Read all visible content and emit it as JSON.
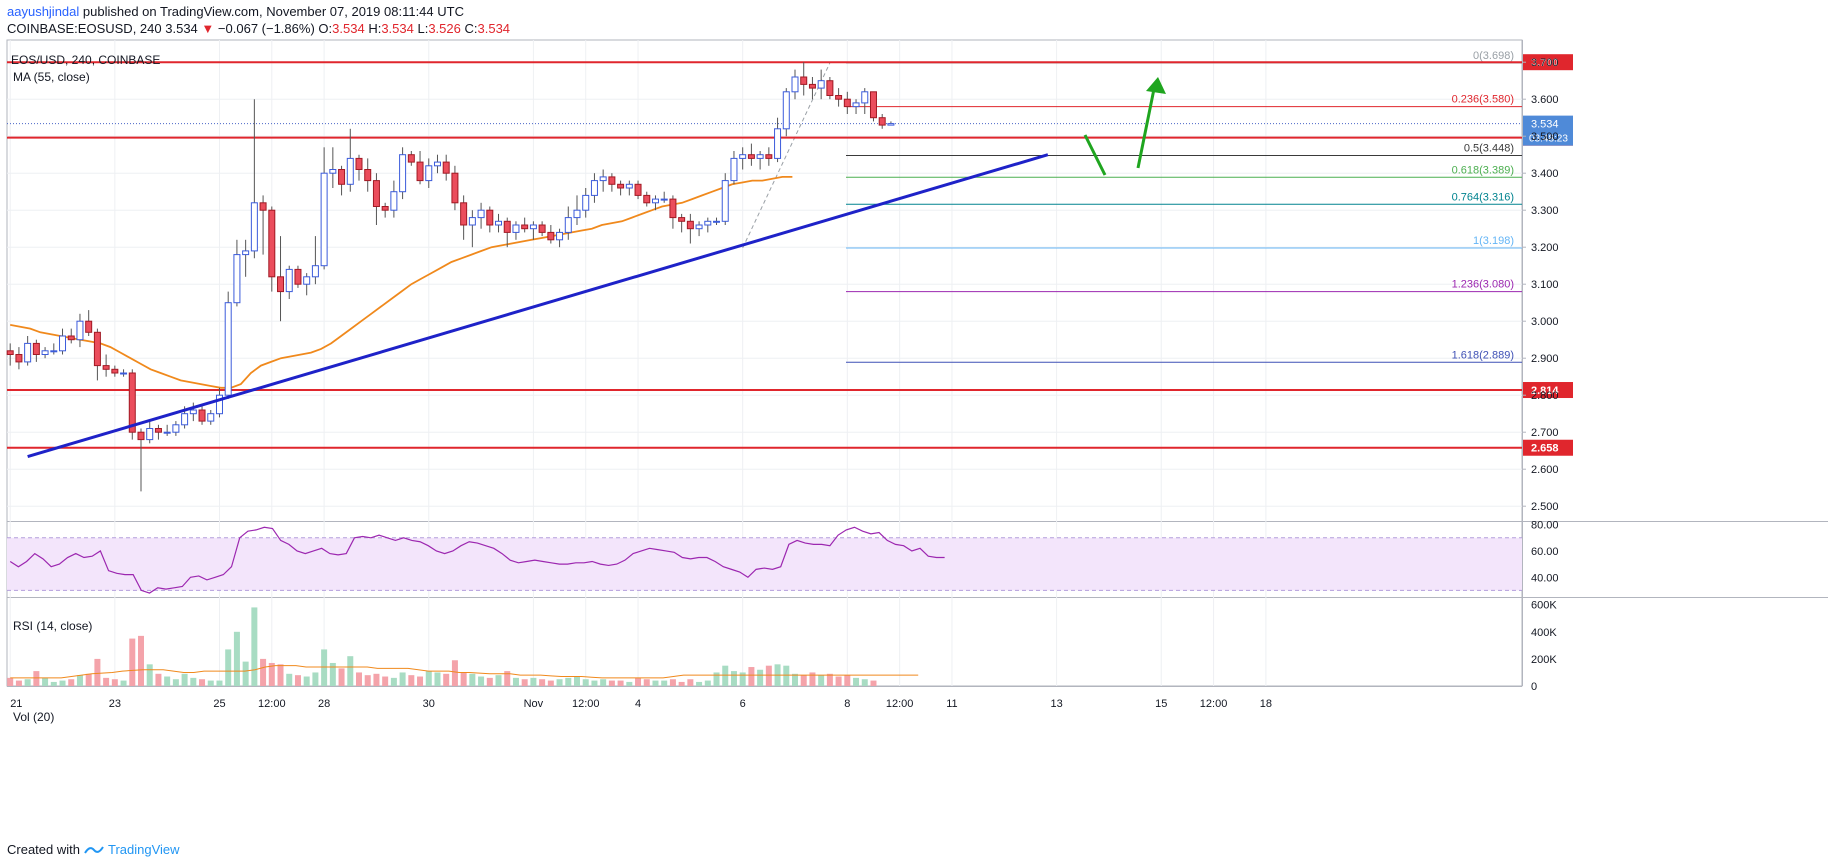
{
  "header": {
    "user": "aayushjindal",
    "published_text": " published on TradingView.com, November 07, 2019 08:11:44 UTC",
    "symbol": "COINBASE:EOSUSD, 240",
    "last": "3.534",
    "change_arrow": "▼",
    "change": "−0.067 (−1.86%)",
    "o_label": "O:",
    "o": "3.534",
    "h_label": "H:",
    "h": "3.534",
    "l_label": "L:",
    "l": "3.526",
    "c_label": "C:",
    "c": "3.534"
  },
  "footer": {
    "created_with": "Created with",
    "brand": "TradingView",
    "logo_icon": "tradingview-logo-icon"
  },
  "colors": {
    "up": "#53b987",
    "down": "#eb4d5c",
    "ma": "#f0891c",
    "trend": "#1e22c8",
    "hline": "#e0262d",
    "arrow": "#1fa51f",
    "rsi": "#9c27b0",
    "rsi_band": "#f3e5fb"
  },
  "chart_data": [
    {
      "type": "candlestick",
      "title": "EOS/USD, 240, COINBASE",
      "indicator_label": "MA (55, close)",
      "ylim": [
        2.46,
        3.76
      ],
      "y_ticks": [
        "3.700",
        "3.600",
        "3.500",
        "3.400",
        "3.300",
        "3.200",
        "3.100",
        "3.000",
        "2.900",
        "2.800",
        "2.700",
        "2.600",
        "2.500"
      ],
      "y_tick_values": [
        3.7,
        3.6,
        3.5,
        3.4,
        3.3,
        3.2,
        3.1,
        3.0,
        2.9,
        2.8,
        2.7,
        2.6,
        2.5
      ],
      "x_tick_labels": [
        "21",
        "23",
        "25",
        "12:00",
        "28",
        "30",
        "Nov",
        "12:00",
        "4",
        "6",
        "8",
        "12:00",
        "11",
        "13",
        "15",
        "12:00",
        "18"
      ],
      "x_tick_index": [
        0,
        12,
        24,
        30,
        36,
        48,
        60,
        66,
        72,
        84,
        96,
        102,
        108,
        120,
        132,
        138,
        144
      ],
      "candles_ohlc": [
        [
          2.92,
          2.94,
          2.88,
          2.91
        ],
        [
          2.91,
          2.93,
          2.87,
          2.89
        ],
        [
          2.89,
          2.96,
          2.88,
          2.94
        ],
        [
          2.94,
          2.95,
          2.89,
          2.91
        ],
        [
          2.91,
          2.93,
          2.9,
          2.92
        ],
        [
          2.92,
          2.94,
          2.91,
          2.92
        ],
        [
          2.92,
          2.98,
          2.91,
          2.96
        ],
        [
          2.96,
          2.98,
          2.94,
          2.95
        ],
        [
          2.95,
          3.02,
          2.93,
          3.0
        ],
        [
          3.0,
          3.03,
          2.96,
          2.97
        ],
        [
          2.97,
          2.98,
          2.84,
          2.88
        ],
        [
          2.88,
          2.91,
          2.85,
          2.87
        ],
        [
          2.87,
          2.88,
          2.85,
          2.86
        ],
        [
          2.86,
          2.87,
          2.85,
          2.86
        ],
        [
          2.86,
          2.87,
          2.68,
          2.7
        ],
        [
          2.7,
          2.71,
          2.54,
          2.68
        ],
        [
          2.68,
          2.73,
          2.67,
          2.71
        ],
        [
          2.71,
          2.72,
          2.68,
          2.7
        ],
        [
          2.7,
          2.72,
          2.69,
          2.7
        ],
        [
          2.7,
          2.73,
          2.69,
          2.72
        ],
        [
          2.72,
          2.77,
          2.71,
          2.75
        ],
        [
          2.75,
          2.78,
          2.73,
          2.76
        ],
        [
          2.76,
          2.77,
          2.72,
          2.73
        ],
        [
          2.73,
          2.76,
          2.72,
          2.75
        ],
        [
          2.75,
          2.82,
          2.74,
          2.8
        ],
        [
          2.8,
          3.08,
          2.79,
          3.05
        ],
        [
          3.05,
          3.22,
          3.04,
          3.18
        ],
        [
          3.18,
          3.22,
          3.12,
          3.19
        ],
        [
          3.19,
          3.6,
          3.17,
          3.32
        ],
        [
          3.32,
          3.34,
          3.18,
          3.3
        ],
        [
          3.3,
          3.31,
          3.08,
          3.12
        ],
        [
          3.12,
          3.23,
          3.0,
          3.08
        ],
        [
          3.08,
          3.15,
          3.06,
          3.14
        ],
        [
          3.14,
          3.15,
          3.09,
          3.1
        ],
        [
          3.1,
          3.13,
          3.07,
          3.12
        ],
        [
          3.12,
          3.23,
          3.1,
          3.15
        ],
        [
          3.15,
          3.47,
          3.14,
          3.4
        ],
        [
          3.4,
          3.47,
          3.36,
          3.41
        ],
        [
          3.41,
          3.42,
          3.34,
          3.37
        ],
        [
          3.37,
          3.52,
          3.35,
          3.44
        ],
        [
          3.44,
          3.45,
          3.38,
          3.41
        ],
        [
          3.41,
          3.44,
          3.35,
          3.38
        ],
        [
          3.38,
          3.4,
          3.26,
          3.31
        ],
        [
          3.31,
          3.32,
          3.28,
          3.3
        ],
        [
          3.3,
          3.38,
          3.28,
          3.35
        ],
        [
          3.35,
          3.47,
          3.33,
          3.45
        ],
        [
          3.45,
          3.46,
          3.42,
          3.43
        ],
        [
          3.43,
          3.46,
          3.37,
          3.38
        ],
        [
          3.38,
          3.44,
          3.36,
          3.42
        ],
        [
          3.42,
          3.45,
          3.4,
          3.43
        ],
        [
          3.43,
          3.45,
          3.38,
          3.4
        ],
        [
          3.4,
          3.42,
          3.3,
          3.32
        ],
        [
          3.32,
          3.34,
          3.22,
          3.26
        ],
        [
          3.26,
          3.3,
          3.2,
          3.28
        ],
        [
          3.28,
          3.32,
          3.25,
          3.3
        ],
        [
          3.3,
          3.31,
          3.24,
          3.26
        ],
        [
          3.26,
          3.29,
          3.24,
          3.27
        ],
        [
          3.27,
          3.28,
          3.2,
          3.24
        ],
        [
          3.24,
          3.27,
          3.22,
          3.26
        ],
        [
          3.26,
          3.28,
          3.24,
          3.25
        ],
        [
          3.25,
          3.27,
          3.22,
          3.26
        ],
        [
          3.26,
          3.27,
          3.23,
          3.24
        ],
        [
          3.24,
          3.26,
          3.21,
          3.22
        ],
        [
          3.22,
          3.25,
          3.2,
          3.24
        ],
        [
          3.24,
          3.31,
          3.22,
          3.28
        ],
        [
          3.28,
          3.34,
          3.26,
          3.3
        ],
        [
          3.3,
          3.36,
          3.28,
          3.34
        ],
        [
          3.34,
          3.4,
          3.32,
          3.38
        ],
        [
          3.38,
          3.41,
          3.35,
          3.39
        ],
        [
          3.39,
          3.4,
          3.35,
          3.37
        ],
        [
          3.37,
          3.38,
          3.34,
          3.36
        ],
        [
          3.36,
          3.38,
          3.34,
          3.37
        ],
        [
          3.37,
          3.38,
          3.33,
          3.34
        ],
        [
          3.34,
          3.35,
          3.31,
          3.32
        ],
        [
          3.32,
          3.34,
          3.3,
          3.33
        ],
        [
          3.33,
          3.35,
          3.32,
          3.33
        ],
        [
          3.33,
          3.34,
          3.25,
          3.28
        ],
        [
          3.28,
          3.29,
          3.24,
          3.27
        ],
        [
          3.27,
          3.29,
          3.21,
          3.25
        ],
        [
          3.25,
          3.27,
          3.23,
          3.26
        ],
        [
          3.26,
          3.28,
          3.24,
          3.27
        ],
        [
          3.27,
          3.28,
          3.26,
          3.27
        ],
        [
          3.27,
          3.4,
          3.26,
          3.38
        ],
        [
          3.38,
          3.46,
          3.37,
          3.44
        ],
        [
          3.44,
          3.47,
          3.41,
          3.45
        ],
        [
          3.45,
          3.48,
          3.42,
          3.44
        ],
        [
          3.44,
          3.46,
          3.41,
          3.45
        ],
        [
          3.45,
          3.47,
          3.42,
          3.44
        ],
        [
          3.44,
          3.55,
          3.43,
          3.52
        ],
        [
          3.52,
          3.63,
          3.5,
          3.62
        ],
        [
          3.62,
          3.68,
          3.6,
          3.66
        ],
        [
          3.66,
          3.7,
          3.61,
          3.64
        ],
        [
          3.64,
          3.66,
          3.6,
          3.63
        ],
        [
          3.63,
          3.68,
          3.6,
          3.65
        ],
        [
          3.65,
          3.66,
          3.6,
          3.61
        ],
        [
          3.61,
          3.63,
          3.58,
          3.6
        ],
        [
          3.6,
          3.62,
          3.56,
          3.58
        ],
        [
          3.58,
          3.6,
          3.56,
          3.59
        ],
        [
          3.59,
          3.63,
          3.56,
          3.62
        ],
        [
          3.62,
          3.62,
          3.54,
          3.55
        ],
        [
          3.55,
          3.56,
          3.52,
          3.53
        ],
        [
          3.53,
          3.54,
          3.53,
          3.534
        ]
      ],
      "ma55": [
        2.99,
        2.985,
        2.98,
        2.97,
        2.965,
        2.96,
        2.955,
        2.95,
        2.945,
        2.94,
        2.93,
        2.915,
        2.9,
        2.885,
        2.87,
        2.86,
        2.85,
        2.84,
        2.835,
        2.83,
        2.825,
        2.82,
        2.82,
        2.83,
        2.86,
        2.88,
        2.89,
        2.9,
        2.905,
        2.91,
        2.915,
        2.925,
        2.94,
        2.96,
        2.98,
        3.0,
        3.02,
        3.04,
        3.06,
        3.08,
        3.1,
        3.115,
        3.13,
        3.145,
        3.16,
        3.17,
        3.18,
        3.19,
        3.2,
        3.205,
        3.21,
        3.215,
        3.22,
        3.225,
        3.23,
        3.235,
        3.24,
        3.245,
        3.25,
        3.26,
        3.265,
        3.27,
        3.28,
        3.29,
        3.3,
        3.31,
        3.315,
        3.32,
        3.33,
        3.34,
        3.35,
        3.36,
        3.37,
        3.375,
        3.38,
        3.38,
        3.385,
        3.39,
        3.39
      ],
      "ma55_start_index": 27,
      "horizontal_levels": [
        3.7,
        3.496,
        2.814,
        2.658
      ],
      "level_labels": [
        "3.700",
        "3.496",
        "2.814",
        "2.658"
      ],
      "current_price": 3.534,
      "current_price_label": "3.534",
      "countdown_label": "03:48:23",
      "trend_line": [
        [
          10,
          2.634
        ],
        [
          84,
          3.2
        ],
        [
          146,
          3.45
        ]
      ],
      "fib_levels": [
        {
          "label": "0(3.698)",
          "value": 3.698,
          "color": "#9aa0a6"
        },
        {
          "label": "0.236(3.580)",
          "value": 3.58,
          "color": "#e0262d"
        },
        {
          "label": "0.5(3.448)",
          "value": 3.448,
          "color": "#3a3a3a"
        },
        {
          "label": "0.618(3.389)",
          "value": 3.389,
          "color": "#4caf50"
        },
        {
          "label": "0.764(3.316)",
          "value": 3.316,
          "color": "#00838f"
        },
        {
          "label": "1(3.198)",
          "value": 3.198,
          "color": "#64b5f6"
        },
        {
          "label": "1.236(3.080)",
          "value": 3.08,
          "color": "#9c27b0"
        },
        {
          "label": "1.618(2.889)",
          "value": 2.889,
          "color": "#3f51b5"
        }
      ]
    },
    {
      "type": "line",
      "title": "RSI (14, close)",
      "ylim": [
        25,
        82
      ],
      "y_ticks": [
        "80.00",
        "60.00",
        "40.00"
      ],
      "y_tick_values": [
        80,
        60,
        40
      ],
      "band": [
        30,
        70
      ],
      "values": [
        52,
        48,
        52,
        58,
        54,
        48,
        50,
        55,
        58,
        55,
        56,
        60,
        45,
        43,
        42,
        42,
        30,
        28,
        32,
        31,
        32,
        33,
        40,
        41,
        38,
        40,
        42,
        48,
        70,
        75,
        76,
        78,
        77,
        68,
        65,
        60,
        58,
        60,
        62,
        58,
        57,
        58,
        70,
        71,
        70,
        72,
        70,
        68,
        70,
        68,
        67,
        64,
        60,
        58,
        60,
        64,
        67,
        66,
        64,
        62,
        58,
        53,
        51,
        52,
        53,
        52,
        51,
        50,
        50,
        51,
        51,
        52,
        50,
        49,
        50,
        53,
        58,
        60,
        62,
        61,
        60,
        59,
        55,
        54,
        55,
        55,
        52,
        48,
        46,
        44,
        40,
        46,
        47,
        46,
        48,
        65,
        68,
        66,
        65,
        65,
        64,
        72,
        76,
        78,
        75,
        73,
        74,
        68,
        65,
        64,
        60,
        62,
        56,
        55,
        55
      ]
    },
    {
      "type": "bar",
      "title": "Vol (20)",
      "ylim": [
        0,
        620000
      ],
      "y_ticks": [
        "600K",
        "400K",
        "200K",
        "0"
      ],
      "y_tick_values": [
        600000,
        400000,
        200000,
        0
      ],
      "values": [
        60000,
        40000,
        50000,
        110000,
        60000,
        30000,
        40000,
        50000,
        80000,
        90000,
        200000,
        60000,
        50000,
        40000,
        350000,
        370000,
        160000,
        90000,
        70000,
        50000,
        90000,
        60000,
        50000,
        40000,
        40000,
        270000,
        400000,
        180000,
        580000,
        200000,
        170000,
        160000,
        90000,
        80000,
        70000,
        100000,
        270000,
        170000,
        130000,
        220000,
        100000,
        80000,
        90000,
        70000,
        60000,
        100000,
        80000,
        70000,
        110000,
        100000,
        90000,
        190000,
        100000,
        90000,
        70000,
        60000,
        80000,
        110000,
        60000,
        50000,
        60000,
        50000,
        40000,
        50000,
        60000,
        70000,
        50000,
        40000,
        50000,
        40000,
        40000,
        30000,
        60000,
        50000,
        40000,
        40000,
        50000,
        30000,
        50000,
        30000,
        40000,
        100000,
        150000,
        110000,
        100000,
        140000,
        120000,
        150000,
        160000,
        150000,
        90000,
        80000,
        100000,
        80000,
        90000,
        70000,
        80000,
        60000,
        50000,
        40000
      ],
      "ma20": [
        60000,
        60000,
        60000,
        60000,
        60000,
        60000,
        70000,
        80000,
        90000,
        95000,
        100000,
        110000,
        115000,
        120000,
        120000,
        120000,
        110000,
        100000,
        100000,
        110000,
        110000,
        110000,
        110000,
        110000,
        120000,
        140000,
        150000,
        150000,
        150000,
        140000,
        140000,
        140000,
        140000,
        140000,
        140000,
        140000,
        130000,
        130000,
        130000,
        130000,
        120000,
        110000,
        110000,
        110000,
        100000,
        100000,
        95000,
        90000,
        90000,
        90000,
        80000,
        80000,
        80000,
        75000,
        70000,
        70000,
        70000,
        65000,
        60000,
        60000,
        60000,
        60000,
        60000,
        60000,
        60000,
        70000,
        80000,
        80000,
        80000,
        80000,
        80000,
        80000,
        80000,
        80000,
        80000,
        80000,
        80000,
        80000,
        80000,
        80000,
        80000,
        80000,
        80000,
        80000,
        80000,
        80000,
        80000,
        80000,
        80000,
        80000
      ]
    }
  ]
}
